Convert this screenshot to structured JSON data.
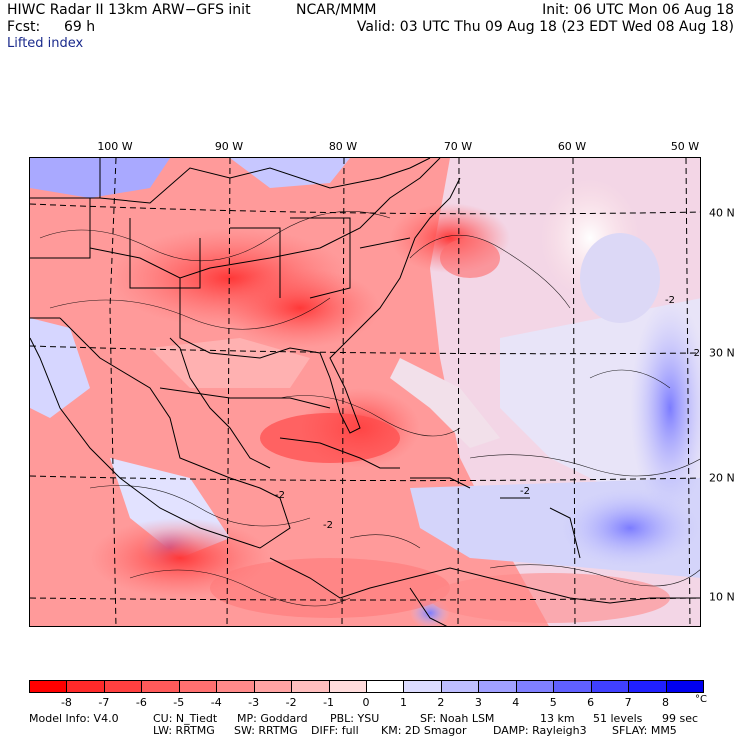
{
  "header": {
    "model_title": "HIWC Radar II 13km ARW−GFS init",
    "org": "NCAR/MMM",
    "init_label": "Init: 06 UTC Mon 06 Aug 18",
    "fcst_label": "Fcst:",
    "fcst_value": "69 h",
    "valid_label": "Valid: 03 UTC Thu 09 Aug 18 (23 EDT Wed 08 Aug 18)"
  },
  "field_name": "Lifted index",
  "map": {
    "lon_labels": [
      "100 W",
      "90 W",
      "80 W",
      "70 W",
      "60 W",
      "50 W"
    ],
    "lat_labels": [
      "40 N",
      "30 N",
      "20 N",
      "10 N"
    ],
    "contour_labels": [
      "-2",
      "-2",
      "-2",
      "-2",
      "-2"
    ],
    "colors": {
      "land_outline": "#000000",
      "grid_dash": "#000000"
    }
  },
  "colorbar": {
    "levels": [
      "-8",
      "-7",
      "-6",
      "-5",
      "-4",
      "-3",
      "-2",
      "-1",
      "0",
      "1",
      "2",
      "3",
      "4",
      "5",
      "6",
      "7",
      "8"
    ],
    "unit": "°C",
    "colors": [
      "#ff0000",
      "#ff2a2a",
      "#ff4040",
      "#ff5a5a",
      "#ff7070",
      "#ff8a8a",
      "#ffa4a4",
      "#ffbebe",
      "#ffdcdc",
      "#ffffff",
      "#dcdcff",
      "#bebeff",
      "#a0a0ff",
      "#8080ff",
      "#6060ff",
      "#4040ff",
      "#2020ff",
      "#0000f0"
    ]
  },
  "footer": {
    "line1": {
      "model_info": "Model Info: V4.0",
      "cu": "CU: N_Tiedt",
      "mp": "MP: Goddard",
      "pbl": "PBL: YSU",
      "sf": "SF: Noah LSM",
      "res": "13 km",
      "levels": "51 levels",
      "dt": "99 sec"
    },
    "line2": {
      "lw": "LW: RRTMG",
      "sw": "SW: RRTMG",
      "diff": "DIFF: full",
      "km": "KM: 2D Smagor",
      "damp": "DAMP: Rayleigh3",
      "sflay": "SFLAY: MM5"
    }
  }
}
